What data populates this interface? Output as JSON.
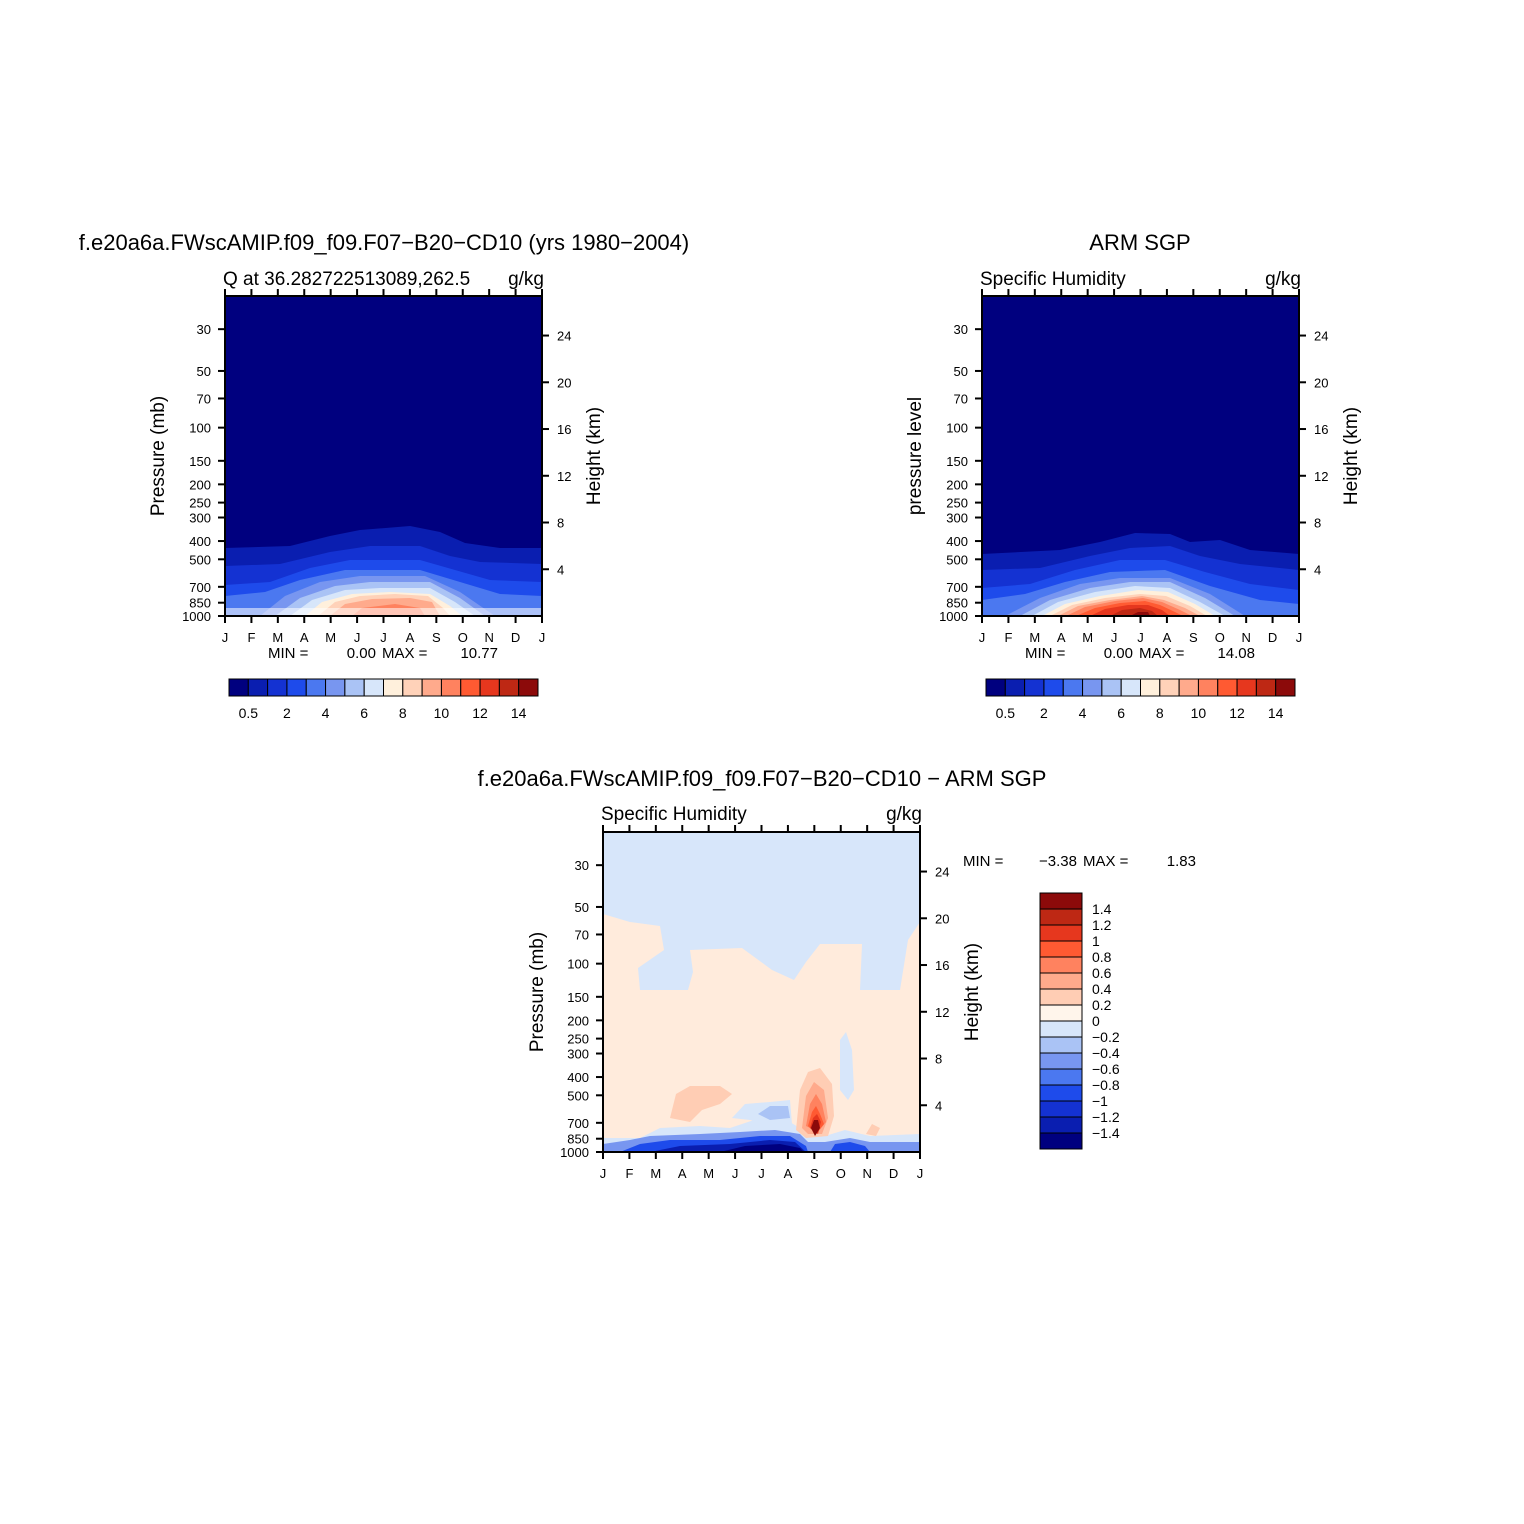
{
  "figure": {
    "panel_a": {
      "title": "f.e20a6a.FWscAMIP.f09_f09.F07−B20−CD10 (yrs 1980−2004)",
      "left_subtitle": "Q at 36.2827225130​89,262.5",
      "right_subtitle": "g/kg",
      "ylabel": "Pressure (mb)",
      "ylabel_right": "Height (km)",
      "min_label": "MIN =",
      "min_value": "0.00",
      "max_label": "MAX =",
      "max_value": "10.77"
    },
    "panel_b": {
      "title": "ARM SGP",
      "left_subtitle": "Specific Humidity",
      "right_subtitle": "g/kg",
      "ylabel": "pressure level",
      "ylabel_right": "Height (km)",
      "min_label": "MIN =",
      "min_value": "0.00",
      "max_label": "MAX =",
      "max_value": "14.08"
    },
    "panel_c": {
      "title": "f.e20a6a.FWscAMIP.f09_f09.F07−B20−CD10 − ARM SGP",
      "left_subtitle": "Specific Humidity",
      "right_subtitle": "g/kg",
      "ylabel": "Pressure (mb)",
      "ylabel_right": "Height (km)",
      "min_label": "MIN =",
      "min_value": "−3.38",
      "max_label": "MAX =",
      "max_value": "1.83"
    }
  },
  "chart_data": [
    {
      "type": "heatmap",
      "panel": "panel_a",
      "x_ticks": [
        "J",
        "F",
        "M",
        "A",
        "M",
        "J",
        "J",
        "A",
        "S",
        "O",
        "N",
        "D",
        "J"
      ],
      "y_ticks_pressure": [
        "30",
        "50",
        "70",
        "100",
        "150",
        "200",
        "250",
        "300",
        "400",
        "500",
        "700",
        "850",
        "1000"
      ],
      "y_ticks_height": [
        "24",
        "20",
        "16",
        "12",
        "8",
        "4"
      ],
      "ylim_mb": [
        1000,
        20
      ],
      "max_q_gkg": 10.77,
      "colorbar_labels": [
        "0.5",
        "2",
        "4",
        "6",
        "8",
        "10",
        "12",
        "14"
      ],
      "colorbar_colors": [
        "#00007F",
        "#0A1EB0",
        "#1432D2",
        "#1E4BEB",
        "#4B78F0",
        "#7896F0",
        "#AAC3F5",
        "#D7E6FA",
        "#FFF0DC",
        "#FFD2B9",
        "#FFAA8C",
        "#FF825F",
        "#FF5A32",
        "#E6371E",
        "#BE2814",
        "#8C0A0A"
      ]
    },
    {
      "type": "heatmap",
      "panel": "panel_b",
      "x_ticks": [
        "J",
        "F",
        "M",
        "A",
        "M",
        "J",
        "J",
        "A",
        "S",
        "O",
        "N",
        "D",
        "J"
      ],
      "y_ticks_pressure": [
        "30",
        "50",
        "70",
        "100",
        "150",
        "200",
        "250",
        "300",
        "400",
        "500",
        "700",
        "850",
        "1000"
      ],
      "y_ticks_height": [
        "24",
        "20",
        "16",
        "12",
        "8",
        "4"
      ],
      "ylim_mb": [
        1000,
        20
      ],
      "max_q_gkg": 14.08,
      "colorbar_labels": [
        "0.5",
        "2",
        "4",
        "6",
        "8",
        "10",
        "12",
        "14"
      ]
    },
    {
      "type": "heatmap",
      "panel": "panel_c",
      "x_ticks": [
        "J",
        "F",
        "M",
        "A",
        "M",
        "J",
        "J",
        "A",
        "S",
        "O",
        "N",
        "D",
        "J"
      ],
      "y_ticks_pressure": [
        "30",
        "50",
        "70",
        "100",
        "150",
        "200",
        "250",
        "300",
        "400",
        "500",
        "700",
        "850",
        "1000"
      ],
      "y_ticks_height": [
        "24",
        "20",
        "16",
        "12",
        "8",
        "4"
      ],
      "ylim_mb": [
        1000,
        20
      ],
      "min_diff_gkg": -3.38,
      "max_diff_gkg": 1.83,
      "colorbar_labels": [
        "1.4",
        "1.2",
        "1",
        "0.8",
        "0.6",
        "0.4",
        "0.2",
        "0",
        "−0.2",
        "−0.4",
        "−0.6",
        "−0.8",
        "−1",
        "−1.2",
        "−1.4"
      ],
      "colorbar_colors": [
        "#8C0A0A",
        "#BE2814",
        "#E6371E",
        "#FF5A32",
        "#FF825F",
        "#FFAA8C",
        "#FFCDB4",
        "#FFF5EB",
        "#D7E6FA",
        "#AAC3F5",
        "#7896F0",
        "#4B78F0",
        "#1E4BEB",
        "#1432D2",
        "#0A1EB0",
        "#00007F"
      ]
    }
  ]
}
